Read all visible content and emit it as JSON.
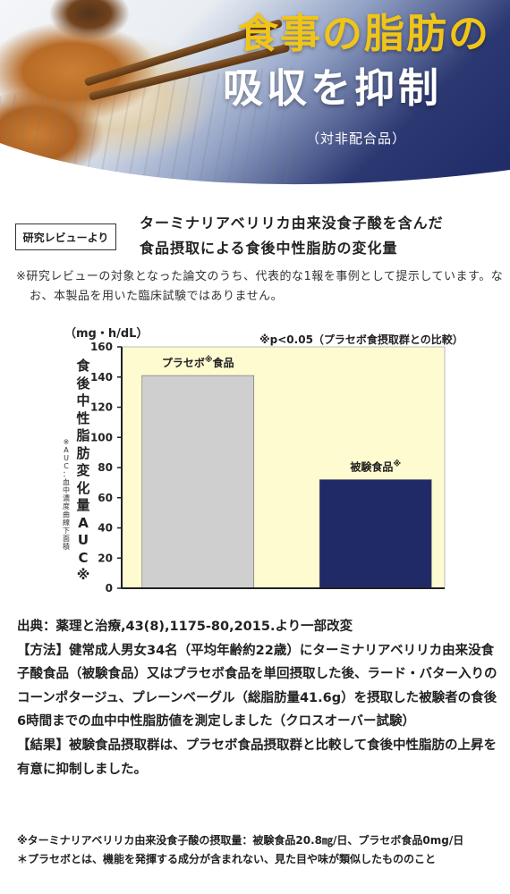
{
  "hero": {
    "title_line1": "食事の脂肪の",
    "title_line2": "吸収を抑制",
    "subtitle": "（対非配合品）",
    "colors": {
      "navy": "#1f2a66",
      "gold": "#f0c419"
    }
  },
  "study": {
    "badge": "研究レビューより",
    "title_line1": "ターミナリアベリリカ由来没食子酸を含んだ",
    "title_line2": "食品摂取による食後中性脂肪の変化量",
    "note": "※研究レビューの対象となった論文のうち、代表的な1報を事例として提示しています。なお、本製品を用いた臨床試験ではありません。"
  },
  "chart_data": {
    "type": "bar",
    "unit_label": "（mg・h/dL）",
    "significance_note": "※p<0.05（プラセボ食摂取群との比較）",
    "ylabel": "食後中性脂肪変化量AUC※",
    "ylabel_note": "※AUC：血中濃度曲線下面積",
    "categories": [
      "プラセボ食品",
      "被験食品"
    ],
    "category_marks": [
      "※",
      "※"
    ],
    "values": [
      141,
      72
    ],
    "bar_colors": [
      "#cfcfcf",
      "#1f2a66"
    ],
    "ylim": [
      0,
      160
    ],
    "yticks": [
      0,
      20,
      40,
      60,
      80,
      100,
      120,
      140,
      160
    ],
    "background": "#fffbd1",
    "grid": false
  },
  "body": {
    "source": "出典：薬理と治療,43(8),1175-80,2015.より一部改変",
    "method": "【方法】健常成人男女34名（平均年齢約22歳）にターミナリアベリリカ由来没食子酸食品（被験食品）又はプラセボ食品を単回摂取した後、ラード・バター入りのコーンポタージュ、プレーンベーグル（総脂肪量41.6g）を摂取した被験者の食後6時間までの血中中性脂肪値を測定しました（クロスオーバー試験）",
    "result": "【結果】被験食品摂取群は、プラセボ食品摂取群と比較して食後中性脂肪の上昇を有意に抑制しました。"
  },
  "footnotes": {
    "line1": "※ターミナリアベリリカ由来没食子酸の摂取量：被験食品20.8㎎/日、プラセボ食品0mg/日",
    "line2": "＊プラセボとは、機能を発揮する成分が含まれない、見た目や味が類似したもののこと"
  }
}
